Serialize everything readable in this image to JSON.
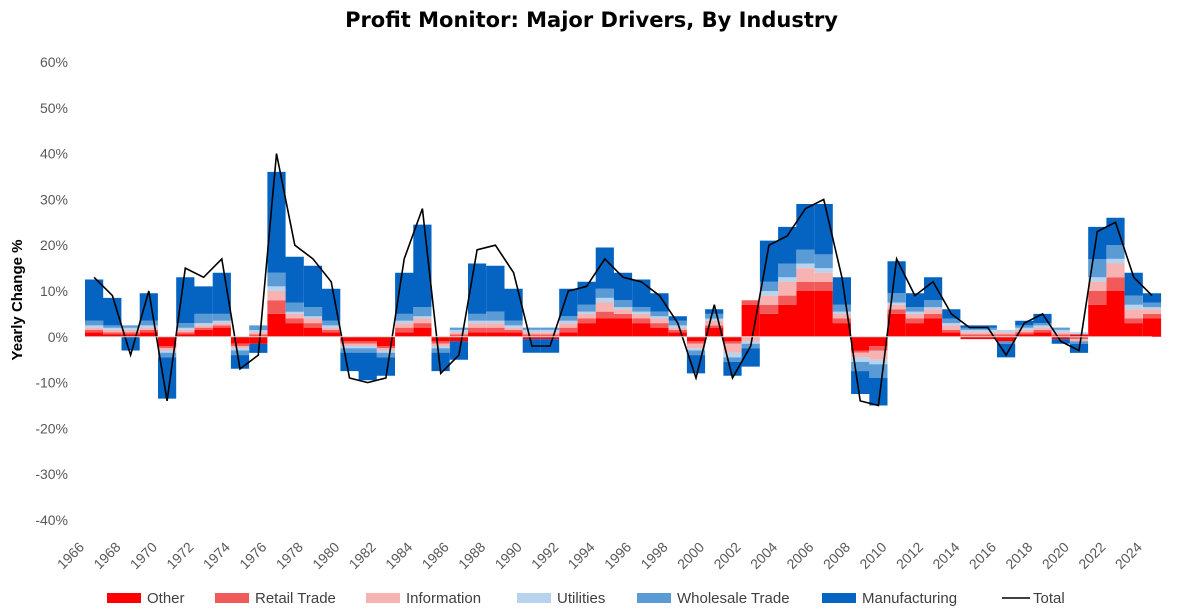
{
  "chart_data": {
    "type": "area",
    "title": "Profit Monitor: Major Drivers, By Industry",
    "xlabel": "",
    "ylabel": "Yearly Change %",
    "x_ticks": [
      "1966",
      "1968",
      "1970",
      "1972",
      "1974",
      "1976",
      "1978",
      "1980",
      "1982",
      "1984",
      "1986",
      "1988",
      "1990",
      "1992",
      "1994",
      "1996",
      "1998",
      "2000",
      "2002",
      "2004",
      "2006",
      "2008",
      "2010",
      "2012",
      "2014",
      "2016",
      "2018",
      "2020",
      "2022",
      "2024"
    ],
    "y_ticks": [
      "60%",
      "50%",
      "40%",
      "30%",
      "20%",
      "10%",
      "0%",
      "-10%",
      "-20%",
      "-30%",
      "-40%"
    ],
    "ylim": [
      -40,
      60
    ],
    "xlim": [
      1966,
      2024.5
    ],
    "grid": false,
    "legend_position": "bottom",
    "x": [
      1966,
      1967,
      1968,
      1969,
      1970,
      1971,
      1972,
      1973,
      1974,
      1975,
      1976,
      1977,
      1978,
      1979,
      1980,
      1981,
      1982,
      1983,
      1984,
      1985,
      1986,
      1987,
      1988,
      1989,
      1990,
      1991,
      1992,
      1993,
      1994,
      1995,
      1996,
      1997,
      1998,
      1999,
      2000,
      2001,
      2002,
      2003,
      2004,
      2005,
      2006,
      2007,
      2008,
      2009,
      2010,
      2011,
      2012,
      2013,
      2014,
      2015,
      2016,
      2017,
      2018,
      2019,
      2020,
      2021,
      2022,
      2023,
      2024
    ],
    "series": [
      {
        "name": "Other",
        "color": "#ff0000",
        "values": [
          1,
          0.5,
          0.5,
          1,
          -2,
          0.5,
          1.5,
          2,
          -1.5,
          -1.5,
          5,
          3,
          2,
          1,
          -1,
          -1,
          -2,
          1,
          2,
          -1,
          -1,
          1,
          1,
          1,
          -0.5,
          -0.5,
          1,
          3,
          4,
          4,
          3,
          2,
          1,
          -1,
          2,
          -1,
          7,
          5,
          7,
          10,
          10,
          3,
          -3,
          -2,
          5,
          3,
          4,
          1,
          -0.5,
          -0.5,
          -1,
          0.5,
          1,
          -0.5,
          0.5,
          7,
          10,
          3,
          4
        ]
      },
      {
        "name": "Retail Trade",
        "color": "#f25a5a",
        "values": [
          0.5,
          0.5,
          0.5,
          0.5,
          -0.5,
          0.5,
          0.5,
          0.5,
          -0.5,
          0.5,
          3,
          1,
          1,
          0.5,
          -0.5,
          -0.5,
          -0.5,
          1,
          1,
          -0.5,
          0.5,
          1,
          1,
          0.5,
          0.5,
          0.5,
          1,
          1,
          1.5,
          1,
          1,
          1,
          0.5,
          -0.5,
          0.5,
          -0.5,
          1,
          2,
          2,
          2,
          2,
          1,
          -0.5,
          -1,
          1,
          1,
          1,
          0.5,
          0.5,
          0.5,
          0.5,
          0.5,
          0.5,
          0.5,
          -0.5,
          3,
          3,
          1,
          1
        ]
      },
      {
        "name": "Information",
        "color": "#f7b2b2",
        "values": [
          0.5,
          0.5,
          0.5,
          0.5,
          -0.5,
          0.5,
          0.5,
          0.5,
          -0.5,
          0.5,
          2,
          1,
          1,
          0.5,
          -0.5,
          -0.5,
          -0.5,
          1,
          1,
          -0.5,
          0.5,
          1,
          1,
          0.5,
          0.5,
          0.5,
          1,
          1,
          2,
          1,
          1,
          1,
          0.5,
          -1,
          1,
          -2,
          -1,
          2,
          3,
          3,
          2,
          1,
          -1,
          -2,
          1,
          1,
          1,
          1,
          0.5,
          0.5,
          0.5,
          0.5,
          0.5,
          0.5,
          -0.5,
          2,
          3,
          2,
          1
        ]
      },
      {
        "name": "Utilities",
        "color": "#b7d3ee",
        "values": [
          0.5,
          0.5,
          0.5,
          0.5,
          -0.5,
          0.5,
          0.5,
          0.5,
          -0.5,
          0.5,
          1,
          0.5,
          0.5,
          0.5,
          -0.5,
          -0.5,
          -0.5,
          0.5,
          0.5,
          -0.5,
          0.5,
          0.5,
          0.5,
          0.5,
          0.5,
          0.5,
          0.5,
          0.5,
          1,
          0.5,
          0.5,
          0.5,
          0.5,
          -0.5,
          0.5,
          -1,
          -0.5,
          1,
          1,
          1,
          1,
          0.5,
          -1,
          -1,
          0.5,
          0.5,
          0.5,
          0.5,
          0.5,
          0.5,
          0.5,
          0.5,
          0.5,
          0.5,
          0.5,
          1,
          1,
          1,
          0.5
        ]
      },
      {
        "name": "Wholesale Trade",
        "color": "#5b9bd5",
        "values": [
          1,
          0.5,
          0.5,
          1,
          -1,
          1,
          2,
          1.5,
          -1,
          1,
          3,
          2,
          2,
          1,
          -1,
          -1,
          -1,
          1.5,
          2,
          -1,
          0.5,
          1.5,
          2,
          1,
          0.5,
          0.5,
          1,
          1.5,
          2,
          1.5,
          1,
          1,
          1,
          -1,
          1,
          -1,
          -1,
          2,
          3,
          3,
          3,
          1.5,
          -2,
          -3,
          2,
          1,
          1.5,
          1,
          0.5,
          0.5,
          -0.5,
          0.5,
          0.5,
          0.5,
          -0.5,
          4,
          3,
          2,
          1
        ]
      },
      {
        "name": "Manufacturing",
        "color": "#0563c1",
        "values": [
          9,
          6,
          -3,
          6,
          -9,
          10,
          6,
          9,
          -3,
          -2,
          22,
          10,
          9,
          7,
          -4,
          -6,
          -4,
          9,
          18,
          -4,
          -4,
          11,
          10,
          7,
          -3,
          -3,
          6,
          5,
          9,
          6,
          6,
          4,
          1,
          -4,
          1,
          -3,
          -4,
          9,
          8,
          10,
          11,
          6,
          -5,
          -6,
          7,
          3,
          5,
          2,
          0.5,
          0.5,
          -3,
          1,
          2,
          -1,
          -2,
          7,
          6,
          5,
          2
        ]
      },
      {
        "name": "Total",
        "color": "#000000",
        "values": [
          13,
          9,
          -4,
          10,
          -14,
          15,
          13,
          17,
          -7,
          -4,
          40,
          20,
          17,
          12,
          -9,
          -10,
          -9,
          17,
          28,
          -8,
          -4,
          19,
          20,
          14,
          -2,
          -2,
          10,
          11,
          17,
          13,
          12,
          9,
          3,
          -9,
          7,
          -9,
          -2,
          20,
          22,
          28,
          30,
          13,
          -14,
          -15,
          17,
          9,
          12,
          5,
          2,
          2,
          -4,
          3,
          5,
          -1,
          -3,
          23,
          25,
          13,
          9
        ]
      }
    ]
  }
}
